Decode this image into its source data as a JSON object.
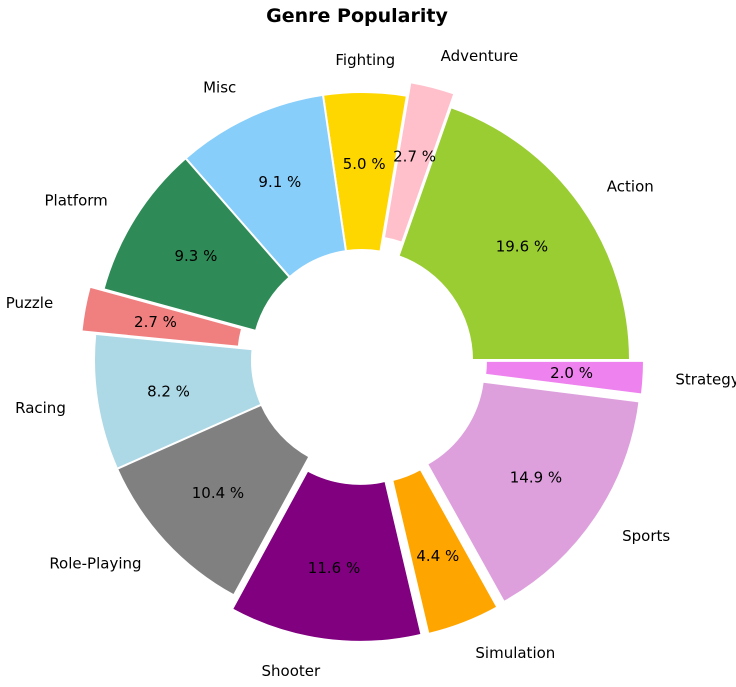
{
  "chart_data": {
    "type": "pie",
    "style": "donut",
    "title": "Genre Popularity",
    "slices": [
      {
        "label": "Action",
        "value": 19.6,
        "pct_label": "19.6 %",
        "color": "#9acd32",
        "exploded": false
      },
      {
        "label": "Adventure",
        "value": 2.7,
        "pct_label": "2.7 %",
        "color": "#ffc0cb",
        "exploded": true
      },
      {
        "label": "Fighting",
        "value": 5.0,
        "pct_label": "5.0 %",
        "color": "#ffd700",
        "exploded": false
      },
      {
        "label": "Misc",
        "value": 9.1,
        "pct_label": "9.1 %",
        "color": "#87cefa",
        "exploded": false
      },
      {
        "label": "Platform",
        "value": 9.3,
        "pct_label": "9.3 %",
        "color": "#2e8b57",
        "exploded": false
      },
      {
        "label": "Puzzle",
        "value": 2.7,
        "pct_label": "2.7 %",
        "color": "#f08080",
        "exploded": true
      },
      {
        "label": "Racing",
        "value": 8.2,
        "pct_label": "8.2 %",
        "color": "#add8e6",
        "exploded": false
      },
      {
        "label": "Role-Playing",
        "value": 10.4,
        "pct_label": "10.4 %",
        "color": "#808080",
        "exploded": false
      },
      {
        "label": "Shooter",
        "value": 11.6,
        "pct_label": "11.6 %",
        "color": "#800080",
        "exploded": true
      },
      {
        "label": "Simulation",
        "value": 4.4,
        "pct_label": "4.4 %",
        "color": "#ffa500",
        "exploded": true
      },
      {
        "label": "Sports",
        "value": 14.9,
        "pct_label": "14.9 %",
        "color": "#dda0dd",
        "exploded": true
      },
      {
        "label": "Strategy",
        "value": 2.0,
        "pct_label": "2.0 %",
        "color": "#ee82ee",
        "exploded": true
      }
    ],
    "start_angle_deg": 0,
    "direction": "counterclockwise",
    "legend": "none"
  }
}
